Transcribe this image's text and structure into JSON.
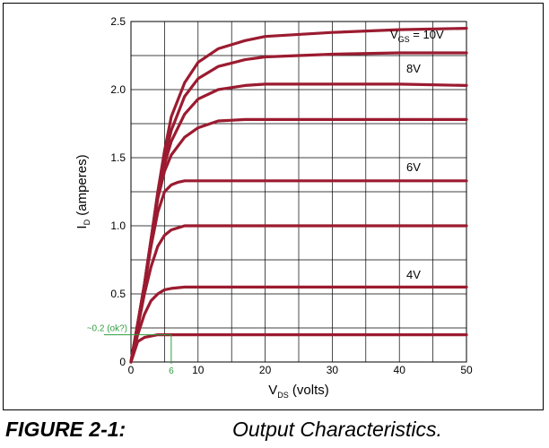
{
  "chart_data": {
    "type": "line",
    "title": "",
    "xlabel": {
      "main": "V",
      "sub": "DS",
      "rest": " (volts)"
    },
    "ylabel": {
      "main": "I",
      "sub": "D",
      "rest": " (amperes)"
    },
    "xlim": [
      0,
      50
    ],
    "ylim": [
      0,
      2.5
    ],
    "x_ticks": [
      "0",
      "10",
      "20",
      "30",
      "40",
      "50"
    ],
    "y_ticks": [
      "0",
      "0.5",
      "1.0",
      "1.5",
      "2.0",
      "2.5"
    ],
    "grid": true,
    "line_color": "#9b1b30",
    "series_labels": [
      {
        "main": "V",
        "sub": "GS",
        "rest": " = 10V"
      },
      {
        "main": "8V",
        "sub": "",
        "rest": ""
      },
      {
        "main": "6V",
        "sub": "",
        "rest": ""
      },
      {
        "main": "4V",
        "sub": "",
        "rest": ""
      }
    ],
    "series": [
      {
        "values": [
          [
            0,
            0
          ],
          [
            1,
            0.15
          ],
          [
            2,
            0.18
          ],
          [
            3,
            0.19
          ],
          [
            4,
            0.2
          ],
          [
            6,
            0.2
          ],
          [
            10,
            0.2
          ],
          [
            20,
            0.2
          ],
          [
            30,
            0.2
          ],
          [
            40,
            0.2
          ],
          [
            50,
            0.2
          ]
        ]
      },
      {
        "values": [
          [
            0,
            0
          ],
          [
            1,
            0.2
          ],
          [
            2,
            0.35
          ],
          [
            3,
            0.45
          ],
          [
            4,
            0.5
          ],
          [
            5,
            0.53
          ],
          [
            6,
            0.54
          ],
          [
            8,
            0.55
          ],
          [
            10,
            0.55
          ],
          [
            20,
            0.55
          ],
          [
            30,
            0.55
          ],
          [
            40,
            0.55
          ],
          [
            50,
            0.55
          ]
        ]
      },
      {
        "values": [
          [
            0,
            0
          ],
          [
            1,
            0.25
          ],
          [
            2,
            0.5
          ],
          [
            3,
            0.7
          ],
          [
            4,
            0.85
          ],
          [
            5,
            0.93
          ],
          [
            6,
            0.97
          ],
          [
            8,
            1.0
          ],
          [
            10,
            1.0
          ],
          [
            20,
            1.0
          ],
          [
            30,
            1.0
          ],
          [
            40,
            1.0
          ],
          [
            50,
            1.0
          ]
        ]
      },
      {
        "values": [
          [
            0,
            0
          ],
          [
            1,
            0.28
          ],
          [
            2,
            0.55
          ],
          [
            3,
            0.85
          ],
          [
            4,
            1.1
          ],
          [
            5,
            1.25
          ],
          [
            6,
            1.3
          ],
          [
            7,
            1.32
          ],
          [
            8,
            1.33
          ],
          [
            10,
            1.33
          ],
          [
            20,
            1.33
          ],
          [
            30,
            1.33
          ],
          [
            40,
            1.33
          ],
          [
            50,
            1.33
          ]
        ]
      },
      {
        "values": [
          [
            0,
            0
          ],
          [
            1,
            0.28
          ],
          [
            2,
            0.56
          ],
          [
            3,
            0.88
          ],
          [
            4,
            1.2
          ],
          [
            5,
            1.4
          ],
          [
            6,
            1.52
          ],
          [
            8,
            1.65
          ],
          [
            10,
            1.72
          ],
          [
            13,
            1.77
          ],
          [
            17,
            1.78
          ],
          [
            20,
            1.78
          ],
          [
            30,
            1.78
          ],
          [
            40,
            1.78
          ],
          [
            50,
            1.78
          ]
        ]
      },
      {
        "values": [
          [
            0,
            0
          ],
          [
            1,
            0.28
          ],
          [
            2,
            0.57
          ],
          [
            3,
            0.9
          ],
          [
            4,
            1.22
          ],
          [
            5,
            1.45
          ],
          [
            6,
            1.62
          ],
          [
            8,
            1.82
          ],
          [
            10,
            1.93
          ],
          [
            13,
            2.0
          ],
          [
            17,
            2.03
          ],
          [
            20,
            2.04
          ],
          [
            30,
            2.04
          ],
          [
            40,
            2.04
          ],
          [
            50,
            2.03
          ]
        ]
      },
      {
        "values": [
          [
            0,
            0
          ],
          [
            1,
            0.28
          ],
          [
            2,
            0.57
          ],
          [
            3,
            0.9
          ],
          [
            4,
            1.24
          ],
          [
            5,
            1.5
          ],
          [
            6,
            1.7
          ],
          [
            8,
            1.95
          ],
          [
            10,
            2.08
          ],
          [
            13,
            2.17
          ],
          [
            17,
            2.22
          ],
          [
            20,
            2.24
          ],
          [
            30,
            2.26
          ],
          [
            40,
            2.27
          ],
          [
            50,
            2.27
          ]
        ]
      },
      {
        "values": [
          [
            0,
            0
          ],
          [
            1,
            0.28
          ],
          [
            2,
            0.57
          ],
          [
            3,
            0.9
          ],
          [
            4,
            1.25
          ],
          [
            5,
            1.55
          ],
          [
            6,
            1.8
          ],
          [
            8,
            2.05
          ],
          [
            10,
            2.2
          ],
          [
            13,
            2.3
          ],
          [
            17,
            2.36
          ],
          [
            20,
            2.39
          ],
          [
            30,
            2.42
          ],
          [
            40,
            2.44
          ],
          [
            50,
            2.45
          ]
        ]
      }
    ],
    "annotations": [
      {
        "text": "~0.2 (ok?)",
        "x": 0,
        "y": 0.2
      },
      {
        "text": "6",
        "x": 6,
        "y": 0
      }
    ]
  },
  "caption": {
    "number": "FIGURE 2-1:",
    "title": "Output Characteristics."
  }
}
